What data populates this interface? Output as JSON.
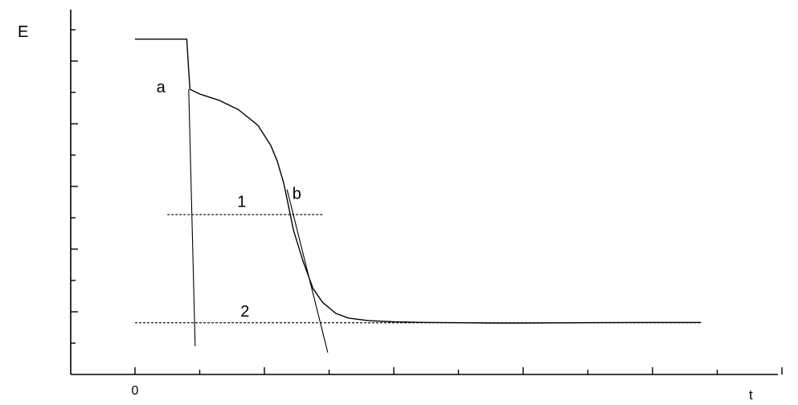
{
  "chart_data": {
    "type": "line",
    "title": "",
    "xlabel": "t",
    "ylabel": "E",
    "x_tick_labels": [
      {
        "x": 0,
        "label": "0"
      }
    ],
    "xlim": [
      -1.0,
      10.0
    ],
    "ylim": [
      0.0,
      11.0
    ],
    "x_tick_positions": [
      0,
      1,
      2,
      3,
      4,
      5,
      6,
      7,
      8,
      9,
      10
    ],
    "y_tick_positions": [
      1,
      2,
      3,
      4,
      5,
      6,
      7,
      8,
      9,
      10,
      11
    ],
    "grid": false,
    "series": [
      {
        "name": "",
        "x": [
          0.0,
          0.8,
          0.83,
          0.85,
          1.0,
          1.3,
          1.6,
          1.9,
          2.1,
          2.2,
          2.3,
          2.35,
          2.45,
          2.6,
          2.75,
          2.9,
          3.1,
          3.3,
          3.6,
          4.0,
          4.5,
          5.0,
          5.5,
          6.0,
          7.0,
          8.0,
          8.75
        ],
        "y": [
          10.7,
          10.7,
          9.7,
          9.1,
          8.95,
          8.75,
          8.45,
          7.95,
          7.3,
          6.8,
          6.1,
          5.6,
          4.6,
          3.6,
          2.75,
          2.3,
          1.95,
          1.8,
          1.72,
          1.68,
          1.66,
          1.65,
          1.64,
          1.64,
          1.65,
          1.66,
          1.66
        ]
      }
    ],
    "tangents": [
      {
        "label": "a",
        "x": [
          0.83,
          0.93
        ],
        "y": [
          9.1,
          0.9
        ]
      },
      {
        "label": "b",
        "x": [
          2.35,
          2.98
        ],
        "y": [
          5.9,
          0.7
        ]
      }
    ],
    "reference_lines": [
      {
        "label": "1",
        "x": [
          0.5,
          2.9
        ],
        "y": 5.1
      },
      {
        "label": "2",
        "x": [
          0.0,
          8.75
        ],
        "y": 1.65
      }
    ],
    "annotations": [
      {
        "text": "a",
        "x": 0.4,
        "y": 9.0
      },
      {
        "text": "b",
        "x": 2.5,
        "y": 5.6
      },
      {
        "text": "1",
        "x": 1.65,
        "y": 5.35
      },
      {
        "text": "2",
        "x": 1.7,
        "y": 1.85
      }
    ]
  }
}
